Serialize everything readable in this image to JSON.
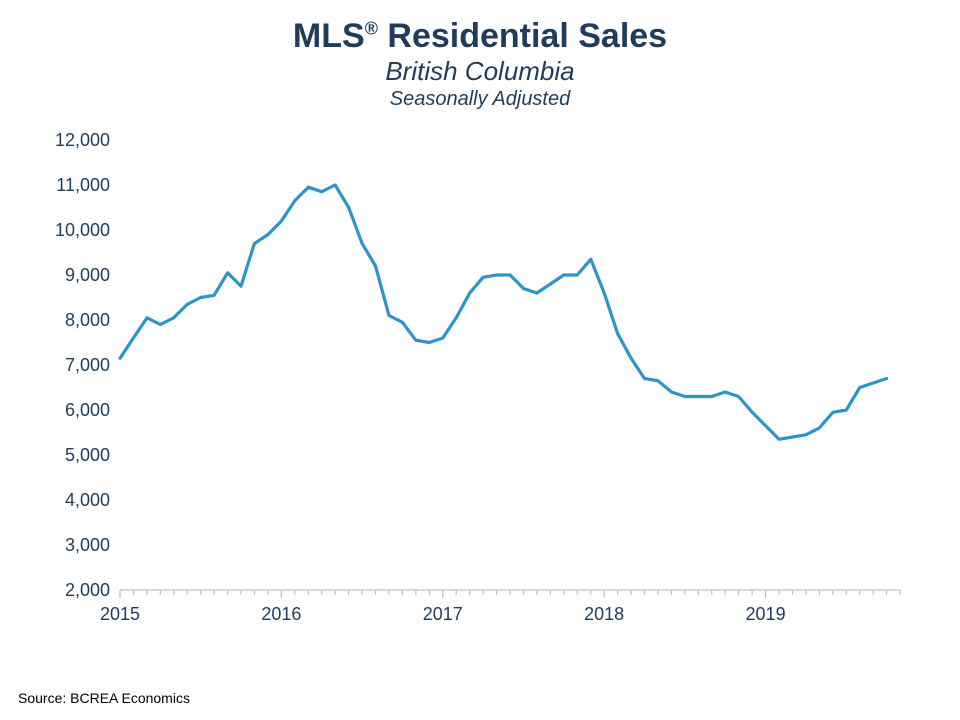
{
  "title_html": "MLS<sup>®</sup> Residential Sales",
  "subtitle": "British Columbia",
  "subtitle2": "Seasonally Adjusted",
  "source": "Source: BCREA Economics",
  "chart": {
    "type": "line",
    "background_color": "#ffffff",
    "line_color": "#2e93c6",
    "line_width": 3.2,
    "axis_color": "#bfbfbf",
    "text_color": "#1f3c5a",
    "title_fontsize": 34,
    "subtitle_fontsize": 26,
    "subtitle2_fontsize": 20,
    "label_fontsize": 18,
    "grid": false,
    "ylim": [
      2000,
      12000
    ],
    "ytick_step": 1000,
    "yticks": [
      2000,
      3000,
      4000,
      5000,
      6000,
      7000,
      8000,
      9000,
      10000,
      11000,
      12000
    ],
    "ytick_format": "comma",
    "x_start": 2015.0,
    "x_end": 2019.833,
    "xtick_major": [
      2015,
      2016,
      2017,
      2018,
      2019
    ],
    "xtick_every_month": true,
    "series": [
      {
        "name": "sales",
        "x": [
          2015.0,
          2015.083,
          2015.167,
          2015.25,
          2015.333,
          2015.417,
          2015.5,
          2015.583,
          2015.667,
          2015.75,
          2015.833,
          2015.917,
          2016.0,
          2016.083,
          2016.167,
          2016.25,
          2016.333,
          2016.417,
          2016.5,
          2016.583,
          2016.667,
          2016.75,
          2016.833,
          2016.917,
          2017.0,
          2017.083,
          2017.167,
          2017.25,
          2017.333,
          2017.417,
          2017.5,
          2017.583,
          2017.667,
          2017.75,
          2017.833,
          2017.917,
          2018.0,
          2018.083,
          2018.167,
          2018.25,
          2018.333,
          2018.417,
          2018.5,
          2018.583,
          2018.667,
          2018.75,
          2018.833,
          2018.917,
          2019.0,
          2019.083,
          2019.167,
          2019.25,
          2019.333,
          2019.417,
          2019.5,
          2019.583,
          2019.667,
          2019.75
        ],
        "y": [
          7150,
          7600,
          8050,
          7900,
          8050,
          8350,
          8500,
          8550,
          9050,
          8750,
          9700,
          9900,
          10200,
          10650,
          10950,
          10850,
          11000,
          10500,
          9700,
          9200,
          8100,
          7950,
          7550,
          7500,
          7600,
          8050,
          8600,
          8950,
          9000,
          9000,
          8700,
          8600,
          8800,
          9000,
          9000,
          9350,
          8600,
          7700,
          7150,
          6700,
          6650,
          6400,
          6300,
          6300,
          6300,
          6400,
          6300,
          5950,
          5650,
          5350,
          5400,
          5450,
          5600,
          5950,
          6000,
          6500,
          6600,
          6700
        ]
      }
    ]
  }
}
